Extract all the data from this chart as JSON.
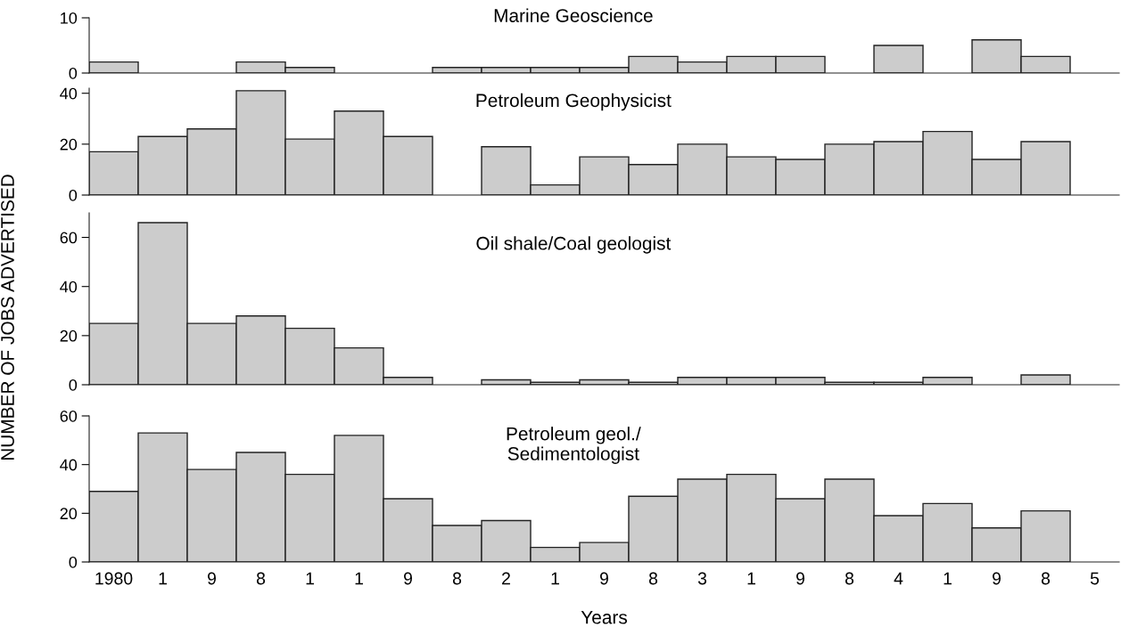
{
  "chart_data": [
    {
      "type": "bar",
      "title": "Marine Geoscience",
      "categories": [
        "1980",
        "1",
        "9",
        "8",
        "1",
        "1",
        "9",
        "8",
        "2",
        "1",
        "9",
        "8",
        "3",
        "1",
        "9",
        "8",
        "4",
        "1",
        "9",
        "8",
        "5"
      ],
      "values": [
        2,
        null,
        null,
        2,
        1,
        null,
        null,
        1,
        1,
        1,
        1,
        3,
        2,
        3,
        3,
        null,
        5,
        null,
        6,
        3,
        null
      ],
      "color": "#cccccc",
      "ylim": [
        0,
        10
      ],
      "yticks": [
        0,
        10
      ],
      "tick_labels": "y"
    },
    {
      "type": "bar",
      "title": "Petroleum Geophysicist",
      "categories": [
        "1980",
        "1",
        "9",
        "8",
        "1",
        "1",
        "9",
        "8",
        "2",
        "1",
        "9",
        "8",
        "3",
        "1",
        "9",
        "8",
        "4",
        "1",
        "9",
        "8",
        "5"
      ],
      "values": [
        17,
        23,
        26,
        41,
        22,
        33,
        23,
        null,
        19,
        4,
        15,
        12,
        20,
        15,
        14,
        20,
        21,
        25,
        14,
        21,
        null
      ],
      "color": "#cccccc",
      "ylim": [
        0,
        42
      ],
      "yticks": [
        0,
        20,
        40
      ],
      "tick_labels": "y"
    },
    {
      "type": "bar",
      "title": "Oil shale/Coal geologist",
      "ylabel": "NUMBER OF JOBS ADVERTISED",
      "categories": [
        "1980",
        "1",
        "9",
        "8",
        "1",
        "1",
        "9",
        "8",
        "2",
        "1",
        "9",
        "8",
        "3",
        "1",
        "9",
        "8",
        "4",
        "1",
        "9",
        "8",
        "5"
      ],
      "values": [
        25,
        66,
        25,
        28,
        23,
        15,
        3,
        null,
        2,
        1,
        2,
        1,
        3,
        3,
        3,
        1,
        1,
        3,
        null,
        4,
        null
      ],
      "color": "#cccccc",
      "ylim": [
        0,
        70
      ],
      "yticks": [
        0,
        20,
        40,
        60
      ],
      "tick_labels": "y"
    },
    {
      "type": "bar",
      "title": "Petroleum geol./\nSedimentologist",
      "xlabel": "Years",
      "categories": [
        "1980",
        "1",
        "9",
        "8",
        "1",
        "1",
        "9",
        "8",
        "2",
        "1",
        "9",
        "8",
        "3",
        "1",
        "9",
        "8",
        "4",
        "1",
        "9",
        "8",
        "5"
      ],
      "values": [
        29,
        53,
        38,
        45,
        36,
        52,
        26,
        15,
        17,
        6,
        8,
        27,
        34,
        36,
        26,
        34,
        19,
        24,
        14,
        21,
        null
      ],
      "color": "#cccccc",
      "ylim": [
        0,
        60
      ],
      "yticks": [
        0,
        20,
        40,
        60
      ]
    }
  ]
}
